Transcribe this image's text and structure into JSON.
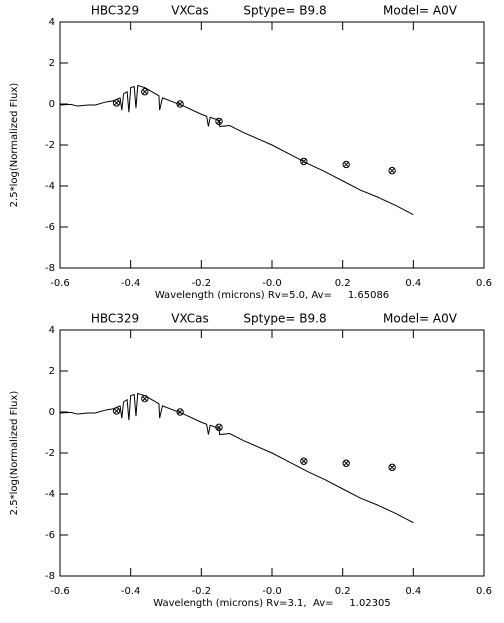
{
  "chart_data": [
    {
      "type": "line",
      "title": [
        "HBC329",
        "VXCas",
        "Sptype= B9.8",
        "Model= A0V"
      ],
      "x_label": "Wavelength (microns) Rv=5.0, Av=     1.65086",
      "y_label": "2.5*log(Normalized Flux)",
      "xlim": [
        -0.6,
        0.6
      ],
      "ylim": [
        -8,
        4
      ],
      "xticks": [
        -0.6,
        -0.4,
        -0.2,
        {
          "value": 0,
          "label": "-0.0"
        },
        0.2,
        0.4,
        0.6
      ],
      "yticks": [
        -8,
        -6,
        -4,
        -2,
        0,
        2,
        4
      ],
      "color": "#000000",
      "series": [
        {
          "kind": "line",
          "x": [
            -0.6,
            -0.57,
            -0.55,
            -0.52,
            -0.5,
            -0.47,
            -0.45,
            -0.43,
            -0.425,
            -0.42,
            -0.41,
            -0.405,
            -0.4,
            -0.39,
            -0.385,
            -0.38,
            -0.37,
            -0.36,
            -0.34,
            -0.32,
            -0.318,
            -0.31,
            -0.28,
            -0.25,
            -0.2,
            -0.185,
            -0.18,
            -0.175,
            -0.15,
            -0.148,
            -0.12,
            -0.08,
            -0.04,
            0.0,
            0.05,
            0.1,
            0.15,
            0.2,
            0.25,
            0.3,
            0.35,
            0.4
          ],
          "values": [
            -0.05,
            -0.02,
            -0.1,
            -0.05,
            -0.05,
            0.1,
            0.15,
            0.3,
            -0.3,
            0.5,
            0.6,
            -0.4,
            0.8,
            0.85,
            -0.2,
            0.9,
            0.85,
            0.8,
            0.6,
            0.4,
            -0.3,
            0.3,
            0.1,
            -0.1,
            -0.5,
            -0.6,
            -1.1,
            -0.65,
            -0.8,
            -1.1,
            -1.05,
            -1.4,
            -1.7,
            -2.0,
            -2.45,
            -2.9,
            -3.3,
            -3.75,
            -4.2,
            -4.55,
            -4.95,
            -5.4
          ]
        },
        {
          "kind": "markers",
          "x": [
            -0.44,
            -0.36,
            -0.26,
            -0.15,
            0.09,
            0.21,
            0.34
          ],
          "values": [
            0.05,
            0.6,
            0.0,
            -0.85,
            -2.8,
            -2.95,
            -3.25
          ]
        }
      ]
    },
    {
      "type": "line",
      "title": [
        "HBC329",
        "VXCas",
        "Sptype= B9.8",
        "Model= A0V"
      ],
      "x_label": "Wavelength (microns) Rv=3.1,  Av=     1.02305",
      "y_label": "2.5*log(Normalized Flux)",
      "xlim": [
        -0.6,
        0.6
      ],
      "ylim": [
        -8,
        4
      ],
      "xticks": [
        -0.6,
        -0.4,
        -0.2,
        {
          "value": 0,
          "label": "-0.0"
        },
        0.2,
        0.4,
        0.6
      ],
      "yticks": [
        -8,
        -6,
        -4,
        -2,
        0,
        2,
        4
      ],
      "color": "#000000",
      "series": [
        {
          "kind": "line",
          "x": [
            -0.6,
            -0.57,
            -0.55,
            -0.52,
            -0.5,
            -0.47,
            -0.45,
            -0.43,
            -0.425,
            -0.42,
            -0.41,
            -0.405,
            -0.4,
            -0.39,
            -0.385,
            -0.38,
            -0.37,
            -0.36,
            -0.34,
            -0.32,
            -0.318,
            -0.31,
            -0.28,
            -0.25,
            -0.2,
            -0.185,
            -0.18,
            -0.175,
            -0.15,
            -0.148,
            -0.12,
            -0.08,
            -0.04,
            0.0,
            0.05,
            0.1,
            0.15,
            0.2,
            0.25,
            0.3,
            0.35,
            0.4
          ],
          "values": [
            -0.05,
            -0.02,
            -0.1,
            -0.05,
            -0.05,
            0.1,
            0.15,
            0.3,
            -0.3,
            0.5,
            0.6,
            -0.4,
            0.8,
            0.85,
            -0.2,
            0.9,
            0.85,
            0.8,
            0.6,
            0.4,
            -0.3,
            0.3,
            0.1,
            -0.1,
            -0.5,
            -0.6,
            -1.1,
            -0.65,
            -0.8,
            -1.1,
            -1.05,
            -1.4,
            -1.7,
            -2.0,
            -2.45,
            -2.9,
            -3.3,
            -3.75,
            -4.2,
            -4.55,
            -4.95,
            -5.4
          ]
        },
        {
          "kind": "markers",
          "x": [
            -0.44,
            -0.36,
            -0.26,
            -0.15,
            0.09,
            0.21,
            0.34
          ],
          "values": [
            0.05,
            0.65,
            0.0,
            -0.75,
            -2.4,
            -2.5,
            -2.7
          ]
        }
      ]
    }
  ]
}
